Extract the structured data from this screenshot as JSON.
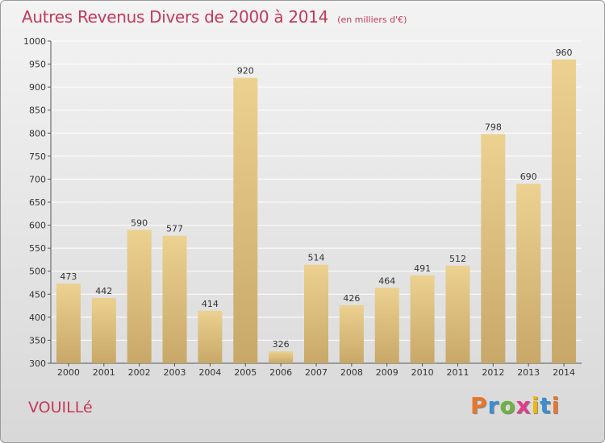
{
  "header": {
    "title": "Autres Revenus Divers de 2000 à 2014",
    "subtitle": "(en milliers d'€)"
  },
  "footer": {
    "commune": "VOUILLé",
    "logo_text": "Proxiti",
    "logo_colors": [
      "#e8762c",
      "#3a8fd0",
      "#6cb33f",
      "#e03c8a",
      "#f2b705",
      "#3a8fd0",
      "#e8762c"
    ]
  },
  "chart_data": {
    "type": "bar",
    "categories": [
      "2000",
      "2001",
      "2002",
      "2003",
      "2004",
      "2005",
      "2006",
      "2007",
      "2008",
      "2009",
      "2010",
      "2011",
      "2012",
      "2013",
      "2014"
    ],
    "values": [
      473,
      442,
      590,
      577,
      414,
      920,
      326,
      514,
      426,
      464,
      491,
      512,
      798,
      690,
      960
    ],
    "title": "Autres Revenus Divers de 2000 à 2014",
    "subtitle": "(en milliers d'€)",
    "ylim": [
      300,
      1000
    ],
    "yticks": [
      300,
      350,
      400,
      450,
      500,
      550,
      600,
      650,
      700,
      750,
      800,
      850,
      900,
      950,
      1000
    ],
    "grid": true,
    "data_labels": true,
    "bar_color": "#ecd190",
    "bar_color_dark": "#c8a868"
  }
}
